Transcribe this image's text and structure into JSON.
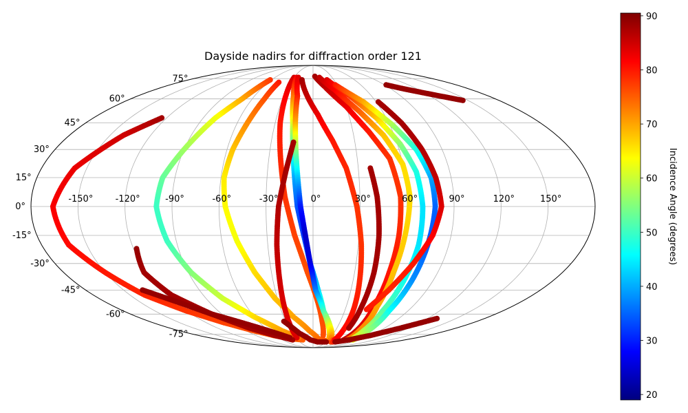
{
  "chart_data": {
    "type": "scatter",
    "projection": "mollweide",
    "title": "Dayside nadirs for diffraction order 121",
    "xlabel": "",
    "ylabel": "",
    "grid": true,
    "lon_ticks": [
      -150,
      -120,
      -90,
      -60,
      -30,
      0,
      30,
      60,
      90,
      120,
      150
    ],
    "lon_tick_labels": [
      "-150°",
      "-120°",
      "-90°",
      "-60°",
      "-30°",
      "0°",
      "30°",
      "60°",
      "90°",
      "120°",
      "150°"
    ],
    "lat_ticks": [
      -75,
      -60,
      -45,
      -30,
      -15,
      0,
      15,
      30,
      45,
      60,
      75
    ],
    "lat_tick_labels": [
      "-75°",
      "-60°",
      "-45°",
      "-30°",
      "-15°",
      "0°",
      "15°",
      "30°",
      "45°",
      "60°",
      "75°"
    ],
    "colorbar": {
      "label": "Incidence Angle (degrees)",
      "colormap": "jet",
      "range": [
        19,
        90.5
      ],
      "ticks": [
        20,
        30,
        40,
        50,
        60,
        70,
        80,
        90
      ],
      "tick_labels": [
        "20",
        "30",
        "40",
        "50",
        "60",
        "70",
        "80",
        "90"
      ]
    },
    "tracks": [
      {
        "points": [
          [
            -124,
            48,
            88
          ],
          [
            -140,
            38,
            85
          ],
          [
            -158,
            20,
            83
          ],
          [
            -166,
            0,
            82
          ],
          [
            -162,
            -20,
            81
          ],
          [
            -150,
            -35,
            80
          ],
          [
            -138,
            -48,
            79
          ],
          [
            -120,
            -58,
            78
          ],
          [
            -100,
            -66,
            77
          ],
          [
            -80,
            -72,
            76
          ],
          [
            -62,
            -76,
            75
          ],
          [
            -40,
            -79,
            75
          ],
          [
            -20,
            -80,
            75
          ]
        ]
      },
      {
        "points": [
          [
            -62,
            74,
            78
          ],
          [
            -70,
            60,
            70
          ],
          [
            -80,
            48,
            63
          ],
          [
            -90,
            30,
            57
          ],
          [
            -98,
            15,
            53
          ],
          [
            -100,
            0,
            50
          ],
          [
            -96,
            -18,
            50
          ],
          [
            -88,
            -35,
            55
          ],
          [
            -76,
            -50,
            60
          ],
          [
            -60,
            -62,
            66
          ],
          [
            -42,
            -72,
            70
          ],
          [
            -25,
            -78,
            73
          ]
        ]
      },
      {
        "points": [
          [
            -46,
            72,
            80
          ],
          [
            -48,
            60,
            76
          ],
          [
            -52,
            45,
            72
          ],
          [
            -56,
            30,
            68
          ],
          [
            -58,
            15,
            65
          ],
          [
            -56,
            0,
            64
          ],
          [
            -50,
            -18,
            63
          ],
          [
            -42,
            -35,
            66
          ],
          [
            -32,
            -50,
            68
          ],
          [
            -20,
            -62,
            70
          ],
          [
            -5,
            -72,
            72
          ],
          [
            10,
            -79,
            74
          ],
          [
            28,
            -81,
            76
          ]
        ]
      },
      {
        "points": [
          [
            -30,
            76,
            85
          ],
          [
            -28,
            62,
            82
          ],
          [
            -26,
            45,
            80
          ],
          [
            -22,
            25,
            79
          ],
          [
            -18,
            5,
            78
          ],
          [
            -12,
            -15,
            77
          ],
          [
            -4,
            -35,
            76
          ],
          [
            4,
            -52,
            76
          ],
          [
            10,
            -65,
            76
          ],
          [
            16,
            -76,
            76
          ]
        ]
      },
      {
        "points": [
          [
            -26,
            76,
            82
          ],
          [
            -20,
            62,
            74
          ],
          [
            -16,
            45,
            62
          ],
          [
            -14,
            30,
            50
          ],
          [
            -12,
            15,
            40
          ],
          [
            -10,
            0,
            34
          ],
          [
            -6,
            -15,
            32
          ],
          [
            -2,
            -30,
            36
          ],
          [
            4,
            -45,
            43
          ],
          [
            10,
            -58,
            52
          ],
          [
            18,
            -68,
            61
          ],
          [
            28,
            -78,
            70
          ],
          [
            40,
            -82,
            77
          ]
        ]
      },
      {
        "points": [
          [
            -23,
            76,
            84
          ],
          [
            -16,
            62,
            80
          ],
          [
            -14,
            45,
            70
          ],
          [
            -12,
            30,
            56
          ],
          [
            -10,
            15,
            42
          ],
          [
            -8,
            0,
            30
          ],
          [
            -5,
            -15,
            24
          ],
          [
            -2,
            -30,
            26
          ],
          [
            2,
            -45,
            36
          ],
          [
            10,
            -58,
            50
          ],
          [
            20,
            -68,
            62
          ],
          [
            32,
            -78,
            72
          ],
          [
            45,
            -82,
            79
          ]
        ]
      },
      {
        "points": [
          [
            -14,
            34,
            88
          ],
          [
            -18,
            18,
            88
          ],
          [
            -22,
            0,
            87
          ],
          [
            -24,
            -20,
            86
          ],
          [
            -25,
            -40,
            85
          ],
          [
            -26,
            -55,
            84
          ],
          [
            -27,
            -68,
            84
          ],
          [
            -28,
            -78,
            84
          ]
        ]
      },
      {
        "points": [
          [
            -16,
            74,
            88
          ],
          [
            -6,
            62,
            86
          ],
          [
            4,
            50,
            83
          ],
          [
            14,
            35,
            80
          ],
          [
            22,
            20,
            79
          ],
          [
            28,
            0,
            78
          ],
          [
            32,
            -20,
            78
          ],
          [
            35,
            -40,
            79
          ],
          [
            38,
            -58,
            80
          ],
          [
            40,
            -72,
            81
          ],
          [
            42,
            -80,
            82
          ]
        ]
      },
      {
        "points": [
          [
            3,
            77,
            88
          ],
          [
            15,
            68,
            86
          ],
          [
            30,
            55,
            83
          ],
          [
            42,
            40,
            80
          ],
          [
            52,
            25,
            78
          ],
          [
            56,
            5,
            78
          ],
          [
            56,
            -15,
            79
          ],
          [
            55,
            -35,
            80
          ],
          [
            55,
            -55,
            82
          ],
          [
            58,
            -70,
            84
          ],
          [
            60,
            -80,
            86
          ]
        ]
      },
      {
        "points": [
          [
            10,
            76,
            86
          ],
          [
            25,
            66,
            82
          ],
          [
            40,
            52,
            75
          ],
          [
            52,
            38,
            68
          ],
          [
            60,
            22,
            66
          ],
          [
            62,
            5,
            66
          ],
          [
            60,
            -15,
            67
          ],
          [
            58,
            -35,
            68
          ],
          [
            58,
            -55,
            70
          ],
          [
            62,
            -72,
            72
          ],
          [
            66,
            -80,
            74
          ]
        ]
      },
      {
        "points": [
          [
            20,
            74,
            84
          ],
          [
            38,
            62,
            78
          ],
          [
            52,
            48,
            68
          ],
          [
            62,
            33,
            56
          ],
          [
            68,
            18,
            48
          ],
          [
            70,
            0,
            44
          ],
          [
            70,
            -20,
            44
          ],
          [
            68,
            -40,
            47
          ],
          [
            66,
            -58,
            52
          ],
          [
            68,
            -72,
            58
          ],
          [
            72,
            -80,
            62
          ]
        ]
      },
      {
        "points": [
          [
            28,
            70,
            80
          ],
          [
            48,
            58,
            70
          ],
          [
            62,
            44,
            58
          ],
          [
            72,
            30,
            48
          ],
          [
            77,
            15,
            40
          ],
          [
            78,
            0,
            35
          ],
          [
            76,
            -20,
            34
          ],
          [
            74,
            -40,
            38
          ],
          [
            72,
            -58,
            46
          ],
          [
            74,
            -72,
            56
          ],
          [
            78,
            -80,
            62
          ]
        ]
      },
      {
        "points": [
          [
            62,
            58,
            88
          ],
          [
            70,
            45,
            88
          ],
          [
            76,
            30,
            87
          ],
          [
            80,
            15,
            86
          ],
          [
            82,
            0,
            84
          ],
          [
            78,
            -15,
            82
          ],
          [
            70,
            -30,
            80
          ],
          [
            60,
            -45,
            79
          ],
          [
            50,
            -57,
            80
          ]
        ]
      },
      {
        "points": [
          [
            38,
            20,
            88
          ],
          [
            41,
            5,
            88
          ],
          [
            43,
            -15,
            88
          ],
          [
            44,
            -35,
            88
          ],
          [
            44,
            -55,
            88
          ],
          [
            45,
            -70,
            88
          ]
        ]
      },
      {
        "points": [
          [
            -118,
            -22,
            89
          ],
          [
            -122,
            -35,
            88
          ],
          [
            -116,
            -48,
            88
          ],
          [
            -100,
            -60,
            88
          ],
          [
            -80,
            -70,
            88
          ],
          [
            -60,
            -76,
            88
          ],
          [
            -40,
            -80,
            88
          ]
        ]
      },
      {
        "points": [
          [
            -135,
            -45,
            89
          ],
          [
            -118,
            -52,
            89
          ],
          [
            -100,
            -60,
            89
          ],
          [
            -80,
            -66,
            89
          ],
          [
            -60,
            -72,
            89
          ],
          [
            -40,
            -78,
            89
          ]
        ]
      },
      {
        "points": [
          [
            -32,
            -65,
            89
          ],
          [
            -20,
            -74,
            89
          ],
          [
            -5,
            -80,
            89
          ],
          [
            10,
            -82,
            89
          ],
          [
            30,
            -82,
            89
          ]
        ]
      },
      {
        "points": [
          [
            50,
            -82,
            89
          ],
          [
            70,
            -80,
            89
          ],
          [
            90,
            -76,
            89
          ],
          [
            110,
            -70,
            89
          ],
          [
            130,
            -63,
            89
          ]
        ]
      },
      {
        "points": [
          [
            92,
            70,
            89
          ],
          [
            105,
            67,
            89
          ],
          [
            120,
            64,
            89
          ],
          [
            135,
            61,
            89
          ],
          [
            145,
            59,
            89
          ]
        ]
      }
    ]
  }
}
